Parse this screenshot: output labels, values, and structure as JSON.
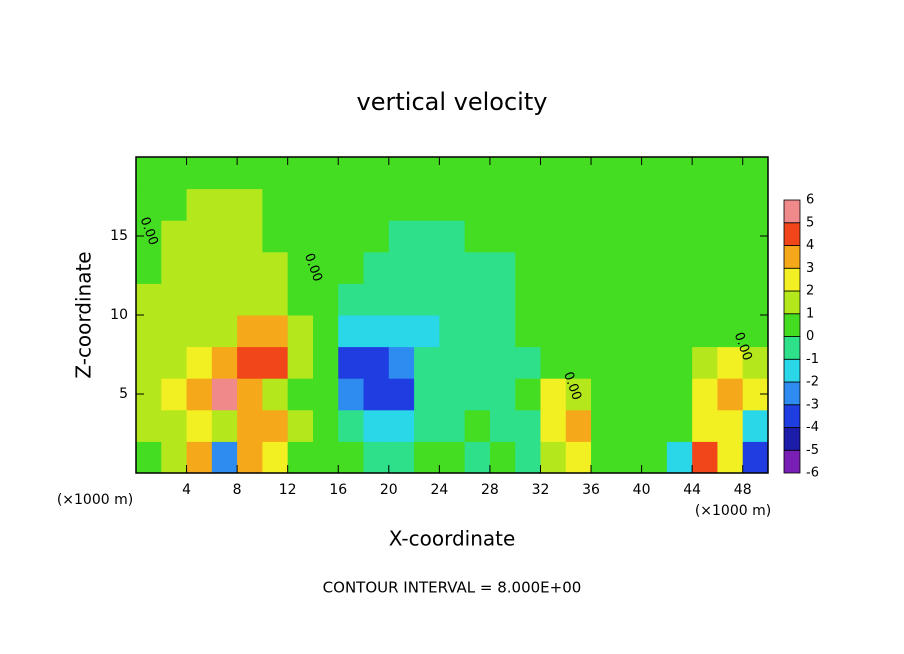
{
  "chart_data": {
    "type": "heatmap",
    "title": "vertical velocity",
    "x_label": "X-coordinate",
    "y_label": "Z-coordinate",
    "x_unit": "(×1000 m)",
    "y_unit": "(×1000 m)",
    "footer": "CONTOUR INTERVAL = 8.000E+00",
    "xlim": [
      0,
      50
    ],
    "ylim": [
      0,
      20
    ],
    "xticks": [
      4,
      8,
      12,
      16,
      20,
      24,
      28,
      32,
      36,
      40,
      44,
      48
    ],
    "yticks": [
      5,
      10,
      15
    ],
    "levels": [
      -6,
      -5,
      -4,
      -3,
      -2,
      -1,
      0,
      1,
      2,
      3,
      4,
      5,
      6
    ],
    "colors": [
      "#7a1fb5",
      "#1c1ca8",
      "#1f3de0",
      "#2e8cf0",
      "#29d7e8",
      "#2ee08a",
      "#44dd22",
      "#b5e81c",
      "#f2ef22",
      "#f5a81a",
      "#f0461a",
      "#f08a8a"
    ],
    "z": [
      [
        0.5,
        1,
        3.5,
        -3,
        3.5,
        2,
        0.5,
        0,
        0,
        -0.5,
        -0.5,
        0,
        0.5,
        -1,
        0,
        -1,
        1.5,
        2,
        0.5,
        0.5,
        0.5,
        -2,
        4,
        2,
        -4
      ],
      [
        1,
        1.5,
        2,
        1,
        3,
        3,
        1,
        0,
        -1,
        -2,
        -1.5,
        -0.5,
        -0.5,
        0,
        -1,
        -0.5,
        2,
        3.5,
        0.5,
        0,
        0,
        0,
        2,
        2.5,
        -2
      ],
      [
        1,
        2,
        3,
        5.5,
        3,
        1.5,
        0.5,
        0,
        -3,
        -4,
        -3.5,
        -1,
        -0.5,
        -0.5,
        -0.5,
        0,
        2,
        1,
        0,
        0,
        0,
        0,
        2,
        3,
        2
      ],
      [
        1,
        1.5,
        2,
        3,
        4.5,
        4,
        1,
        0,
        -3.5,
        -4,
        -3,
        -1,
        -0.5,
        -0.5,
        -0.5,
        -0.5,
        0.5,
        0,
        0,
        0,
        0,
        0.5,
        1.5,
        2.5,
        1.5
      ],
      [
        1,
        1,
        1,
        1.5,
        3,
        3,
        1,
        0,
        -2,
        -2,
        -1.5,
        -1.5,
        -1,
        -0.5,
        -0.5,
        0,
        0,
        0,
        0,
        0,
        0,
        0,
        0.5,
        0.5,
        0
      ],
      [
        1,
        1,
        1,
        1,
        1.5,
        1.5,
        0.5,
        0,
        -0.5,
        -1,
        -1,
        -1,
        -1,
        -0.5,
        -0.5,
        0,
        0,
        0,
        0,
        0,
        0,
        0,
        0,
        0,
        0
      ],
      [
        0.5,
        1,
        1.5,
        1,
        1,
        1,
        0.5,
        0,
        0,
        -0.5,
        -0.5,
        -0.5,
        -0.5,
        -0.5,
        -0.5,
        0,
        0,
        0,
        0,
        0,
        0,
        0,
        0,
        0,
        0
      ],
      [
        0.5,
        1,
        1,
        1,
        1,
        0.5,
        0.5,
        0,
        0,
        0,
        -0.5,
        -0.5,
        -0.5,
        0,
        0,
        0,
        0,
        0,
        0,
        0,
        0,
        0,
        0,
        0,
        0
      ],
      [
        0.5,
        0.5,
        1,
        1,
        1,
        0.5,
        0,
        0,
        0,
        0,
        0,
        0,
        0,
        0,
        0,
        0,
        0,
        0,
        0,
        0,
        0,
        0,
        0,
        0,
        0
      ],
      [
        0,
        0.5,
        0.5,
        0.5,
        0.5,
        0,
        0,
        0,
        0,
        0,
        0,
        0,
        0,
        0,
        0,
        0,
        0,
        0,
        0,
        0,
        0,
        0,
        0,
        0,
        0
      ]
    ],
    "annotations": [
      {
        "text": "0.00",
        "x": 1,
        "y": 15.3
      },
      {
        "text": "0.00",
        "x": 14,
        "y": 13
      },
      {
        "text": "0.00",
        "x": 34.5,
        "y": 5.5
      },
      {
        "text": "0.00",
        "x": 48,
        "y": 8
      }
    ]
  }
}
